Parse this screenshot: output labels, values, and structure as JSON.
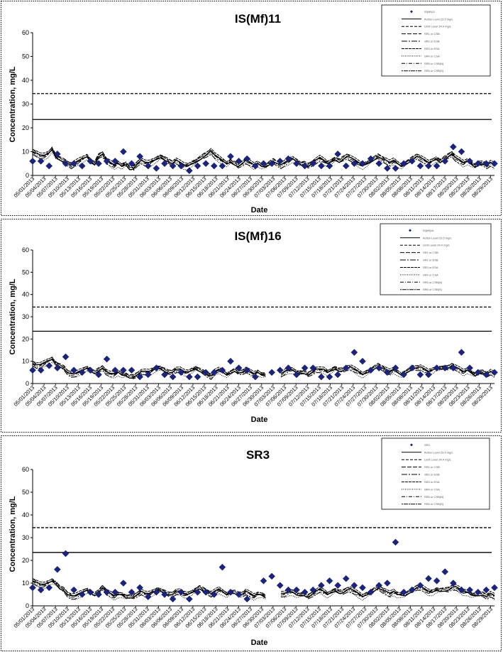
{
  "x_dates": [
    "05/01/2013",
    "05/04/2013",
    "05/07/2013",
    "05/10/2013",
    "05/13/2013",
    "05/16/2013",
    "05/19/2013",
    "05/22/2013",
    "05/25/2013",
    "05/28/2013",
    "05/31/2013",
    "06/03/2013",
    "06/06/2013",
    "06/09/2013",
    "06/12/2013",
    "06/15/2013",
    "06/18/2013",
    "06/21/2013",
    "06/24/2013",
    "06/27/2013",
    "06/30/2013",
    "07/03/2013",
    "07/06/2013",
    "07/09/2013",
    "07/12/2013",
    "07/15/2013",
    "07/18/2013",
    "07/21/2013",
    "07/24/2013",
    "07/27/2013",
    "07/30/2013",
    "08/02/2013",
    "08/05/2013",
    "08/08/2013",
    "08/11/2013",
    "08/14/2013",
    "08/17/2013",
    "08/20/2013",
    "08/23/2013",
    "08/26/2013",
    "08/29/2013"
  ],
  "chart_data": [
    {
      "type": "line",
      "title": "IS(Mf)11",
      "xlabel": "Date",
      "ylabel": "Concentration, mg/L",
      "ylim": [
        0,
        60
      ],
      "yticks": [
        0,
        10,
        20,
        30,
        40,
        50,
        60
      ],
      "x_start": "05/01/2013",
      "x_end": "08/30/2013",
      "legend_position": "top-right",
      "legend_entries": [
        "IS(Mf)11",
        "Action Level 23.5 mg/L",
        "Limit Level 34.4 mg/L",
        "SR1 or CSB",
        "SR2 or ESB",
        "SR3 or ESA",
        "SR4 or CSA",
        "SR5 or CSB(N)",
        "SR6 or CSB(S)"
      ],
      "reference_lines": [
        {
          "name": "Action Level 23.5 mg/L",
          "value": 23.5,
          "style": "solid"
        },
        {
          "name": "Limit Level 34.4 mg/L",
          "value": 34.4,
          "style": "dashed"
        }
      ],
      "points": [
        [
          0,
          6
        ],
        [
          1,
          6
        ],
        [
          2,
          4
        ],
        [
          3,
          9
        ],
        [
          4,
          5
        ],
        [
          5,
          5
        ],
        [
          6,
          4
        ],
        [
          7,
          6
        ],
        [
          8,
          5
        ],
        [
          9,
          6
        ],
        [
          10,
          6
        ],
        [
          11,
          10
        ],
        [
          12,
          5
        ],
        [
          13,
          8
        ],
        [
          14,
          4
        ],
        [
          15,
          3
        ],
        [
          16,
          5
        ],
        [
          17,
          4
        ],
        [
          18,
          4
        ],
        [
          19,
          2
        ],
        [
          20,
          4
        ],
        [
          21,
          5
        ],
        [
          22,
          4
        ],
        [
          23,
          4
        ],
        [
          24,
          8
        ],
        [
          25,
          6
        ],
        [
          26,
          7
        ],
        [
          27,
          4
        ],
        [
          28,
          5
        ],
        [
          29,
          5
        ],
        [
          30,
          6
        ],
        [
          31,
          7
        ],
        [
          32,
          5
        ],
        [
          33,
          4
        ],
        [
          34,
          5
        ],
        [
          35,
          4
        ],
        [
          36,
          4
        ],
        [
          37,
          9
        ],
        [
          38,
          4
        ],
        [
          39,
          5
        ],
        [
          40,
          5
        ],
        [
          41,
          7
        ],
        [
          42,
          5
        ],
        [
          43,
          3
        ],
        [
          44,
          3
        ],
        [
          45,
          5
        ],
        [
          46,
          6
        ],
        [
          47,
          4
        ],
        [
          48,
          4
        ],
        [
          49,
          4
        ],
        [
          50,
          6
        ],
        [
          51,
          12
        ],
        [
          52,
          10
        ],
        [
          53,
          6
        ],
        [
          54,
          5
        ],
        [
          55,
          5
        ],
        [
          56,
          5
        ]
      ],
      "base_series": [
        10,
        9,
        8,
        8,
        9,
        11,
        8,
        7,
        6,
        5,
        4,
        5,
        6,
        7,
        8,
        6,
        5,
        8,
        9,
        6,
        5,
        4,
        5,
        4,
        5,
        3,
        3,
        5,
        6,
        5,
        5,
        6,
        7,
        8,
        7,
        6,
        5,
        6,
        5,
        4,
        4,
        5,
        6,
        7,
        8,
        9,
        10,
        8,
        7,
        6,
        5,
        6,
        5,
        4,
        5,
        6,
        5,
        4,
        5,
        4,
        4,
        5,
        6,
        5,
        4,
        5,
        6,
        7,
        6,
        5,
        5,
        4,
        5,
        6,
        7,
        6,
        5,
        6,
        7,
        6,
        7,
        8,
        7,
        6,
        5,
        4,
        5,
        6,
        7,
        8,
        7,
        6,
        5,
        6,
        5,
        4,
        5,
        6,
        7,
        8,
        7,
        6,
        5,
        6,
        7,
        6,
        7,
        8,
        9,
        7,
        6,
        5,
        6,
        5,
        4,
        5,
        5,
        4,
        5,
        4
      ]
    },
    {
      "type": "line",
      "title": "IS(Mf)16",
      "xlabel": "Date",
      "ylabel": "Concentration, mg/L",
      "ylim": [
        0,
        60
      ],
      "yticks": [
        0,
        10,
        20,
        30,
        40,
        50,
        60
      ],
      "x_start": "05/01/2013",
      "x_end": "08/30/2013",
      "legend_position": "top-right",
      "legend_entries": [
        "IS(Mf)16",
        "Action Level 23.5 mg/L",
        "Limit Level 34.4 mg/L",
        "SR1 or CSB",
        "SR2 or ESB",
        "SR3 or ESA",
        "SR4 or CSA",
        "SR5 or CSB(N)",
        "SR6 or CSB(S)"
      ],
      "reference_lines": [
        {
          "name": "Action Level 23.5 mg/L",
          "value": 23.5,
          "style": "solid"
        },
        {
          "name": "Limit Level 34.4 mg/L",
          "value": 34.4,
          "style": "dashed"
        }
      ],
      "points": [
        [
          0,
          6
        ],
        [
          1,
          6
        ],
        [
          2,
          8
        ],
        [
          3,
          7
        ],
        [
          4,
          12
        ],
        [
          5,
          6
        ],
        [
          6,
          5
        ],
        [
          7,
          6
        ],
        [
          8,
          4
        ],
        [
          9,
          11
        ],
        [
          10,
          6
        ],
        [
          11,
          6
        ],
        [
          12,
          6
        ],
        [
          13,
          3
        ],
        [
          14,
          4
        ],
        [
          15,
          7
        ],
        [
          16,
          4
        ],
        [
          17,
          3
        ],
        [
          18,
          5
        ],
        [
          19,
          3
        ],
        [
          20,
          3
        ],
        [
          21,
          5
        ],
        [
          22,
          5
        ],
        [
          23,
          6
        ],
        [
          24,
          10
        ],
        [
          25,
          7
        ],
        [
          26,
          6
        ],
        [
          27,
          3
        ],
        [
          29,
          5
        ],
        [
          30,
          6
        ],
        [
          31,
          7
        ],
        [
          32,
          4
        ],
        [
          33,
          7
        ],
        [
          34,
          7
        ],
        [
          35,
          3
        ],
        [
          36,
          3
        ],
        [
          37,
          4
        ],
        [
          38,
          7
        ],
        [
          39,
          14
        ],
        [
          40,
          10
        ],
        [
          41,
          6
        ],
        [
          42,
          7
        ],
        [
          43,
          5
        ],
        [
          44,
          7
        ],
        [
          45,
          4
        ],
        [
          46,
          7
        ],
        [
          47,
          4
        ],
        [
          48,
          4
        ],
        [
          49,
          7
        ],
        [
          50,
          7
        ],
        [
          51,
          7
        ],
        [
          52,
          14
        ],
        [
          53,
          7
        ],
        [
          54,
          5
        ],
        [
          55,
          4
        ],
        [
          56,
          5
        ]
      ],
      "base_series": [
        9,
        8,
        8,
        9,
        10,
        11,
        9,
        8,
        7,
        5,
        4,
        4,
        5,
        6,
        7,
        6,
        5,
        6,
        7,
        5,
        4,
        4,
        5,
        4,
        4,
        3,
        3,
        4,
        5,
        5,
        5,
        6,
        7,
        7,
        6,
        5,
        5,
        6,
        6,
        5,
        5,
        6,
        7,
        6,
        5,
        4,
        3,
        5,
        6,
        5,
        4,
        5,
        6,
        5,
        5,
        6,
        5,
        4,
        5,
        4,
        4,
        5,
        6,
        5,
        4,
        5,
        6,
        6,
        5,
        5,
        5,
        4,
        5,
        6,
        6,
        6,
        5,
        6,
        7,
        6,
        6,
        7,
        7,
        6,
        5,
        4,
        5,
        6,
        7,
        8,
        7,
        6,
        5,
        6,
        5,
        4,
        5,
        6,
        7,
        7,
        7,
        6,
        5,
        6,
        7,
        7,
        7,
        7,
        8,
        7,
        6,
        5,
        6,
        5,
        4,
        5,
        5,
        4,
        5,
        4
      ]
    },
    {
      "type": "line",
      "title": "SR3",
      "xlabel": "Date",
      "ylabel": "Concentration, mg/L",
      "ylim": [
        0,
        60
      ],
      "yticks": [
        0,
        10,
        20,
        30,
        40,
        50,
        60
      ],
      "x_start": "05/01/2013",
      "x_end": "08/30/2013",
      "legend_position": "top-right",
      "legend_entries": [
        "SR3",
        "Action Level 23.5 mg/L",
        "Limit Level 34.4 mg/L",
        "SR1 or CSB",
        "SR2 or ESB",
        "SR3 or ESA",
        "SR4 or CSA",
        "SR5 or CSB(N)",
        "SR6 or CSB(S)"
      ],
      "reference_lines": [
        {
          "name": "Action Level 23.5 mg/L",
          "value": 23.5,
          "style": "solid"
        },
        {
          "name": "Limit Level 34.4 mg/L",
          "value": 34.4,
          "style": "dashed"
        }
      ],
      "points": [
        [
          0,
          8
        ],
        [
          1,
          7
        ],
        [
          2,
          8
        ],
        [
          3,
          16
        ],
        [
          4,
          23
        ],
        [
          5,
          7
        ],
        [
          6,
          5
        ],
        [
          7,
          6
        ],
        [
          8,
          5
        ],
        [
          9,
          6
        ],
        [
          10,
          6
        ],
        [
          11,
          10
        ],
        [
          12,
          6
        ],
        [
          13,
          8
        ],
        [
          14,
          4
        ],
        [
          15,
          6
        ],
        [
          16,
          5
        ],
        [
          17,
          3
        ],
        [
          18,
          6
        ],
        [
          19,
          3
        ],
        [
          20,
          6
        ],
        [
          21,
          6
        ],
        [
          22,
          5
        ],
        [
          23,
          17
        ],
        [
          24,
          6
        ],
        [
          25,
          5
        ],
        [
          26,
          3
        ],
        [
          28,
          11
        ],
        [
          29,
          13
        ],
        [
          30,
          9
        ],
        [
          31,
          7
        ],
        [
          32,
          7
        ],
        [
          33,
          6
        ],
        [
          34,
          7
        ],
        [
          35,
          9
        ],
        [
          36,
          11
        ],
        [
          37,
          9
        ],
        [
          38,
          12
        ],
        [
          39,
          9
        ],
        [
          40,
          8
        ],
        [
          41,
          6
        ],
        [
          42,
          9
        ],
        [
          43,
          10
        ],
        [
          44,
          28
        ],
        [
          45,
          6
        ],
        [
          46,
          7
        ],
        [
          47,
          9
        ],
        [
          48,
          12
        ],
        [
          49,
          11
        ],
        [
          50,
          15
        ],
        [
          51,
          10
        ],
        [
          52,
          7
        ],
        [
          53,
          7
        ],
        [
          54,
          6
        ],
        [
          55,
          7
        ],
        [
          56,
          8
        ]
      ],
      "base_series": [
        11,
        10,
        9,
        9,
        10,
        11,
        10,
        8,
        7,
        5,
        4,
        4,
        5,
        6,
        7,
        6,
        5,
        6,
        8,
        6,
        5,
        4,
        5,
        5,
        4,
        4,
        4,
        5,
        6,
        5,
        5,
        6,
        7,
        7,
        6,
        5,
        5,
        6,
        6,
        5,
        5,
        6,
        7,
        8,
        7,
        6,
        5,
        6,
        7,
        6,
        5,
        6,
        6,
        5,
        5,
        6,
        5,
        4,
        5,
        5,
        4,
        5,
        6,
        5,
        5,
        5,
        6,
        6,
        5,
        5,
        5,
        4,
        5,
        6,
        7,
        6,
        5,
        6,
        7,
        6,
        6,
        7,
        7,
        6,
        5,
        4,
        5,
        6,
        7,
        8,
        7,
        6,
        5,
        6,
        5,
        5,
        5,
        6,
        7,
        8,
        8,
        7,
        6,
        6,
        7,
        7,
        7,
        7,
        8,
        8,
        7,
        6,
        6,
        5,
        5,
        5,
        5,
        4,
        5,
        4
      ]
    }
  ]
}
